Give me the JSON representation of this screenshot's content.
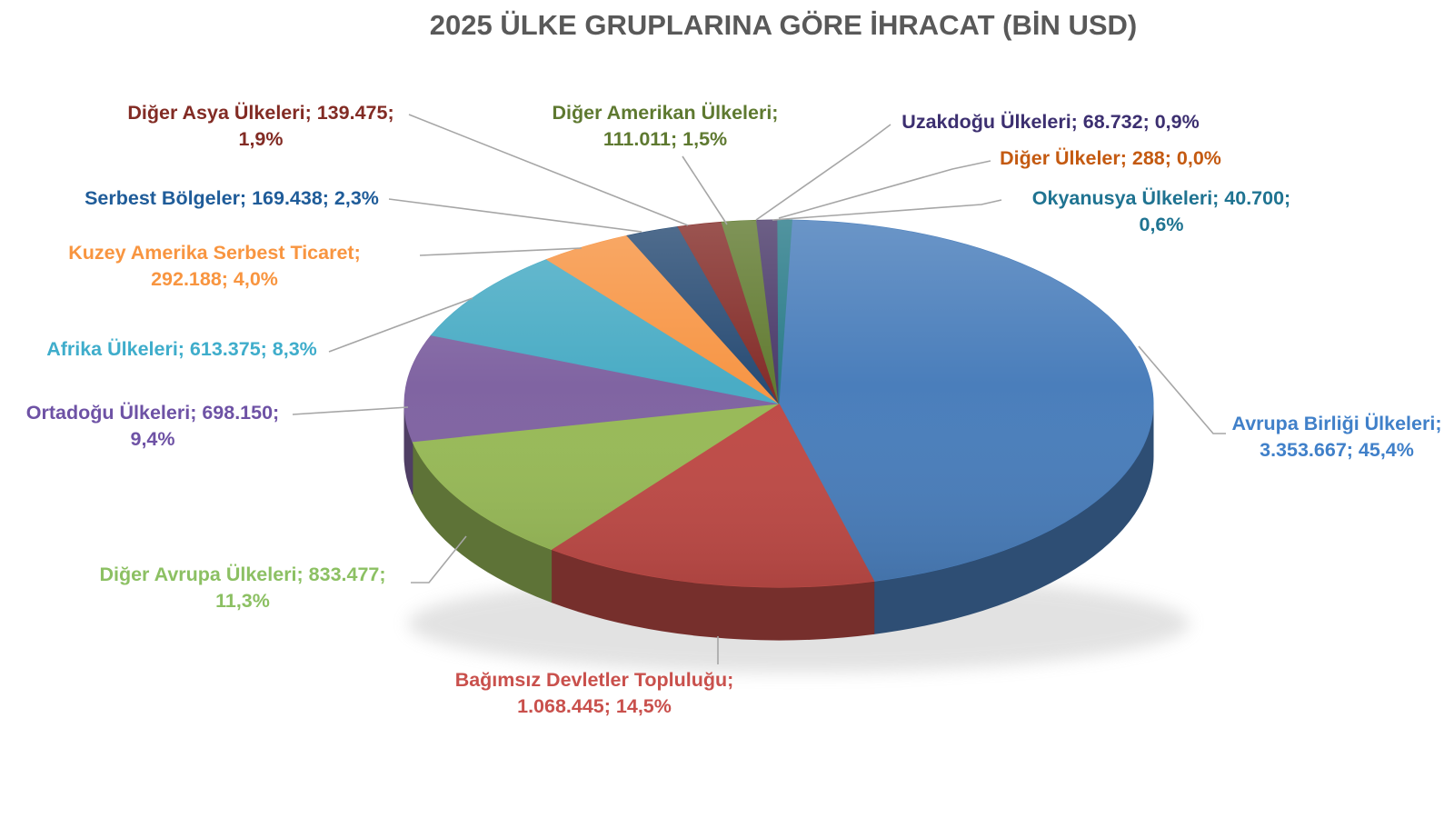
{
  "chart_data": {
    "type": "pie",
    "style": "3d",
    "title": "2025 ÜLKE GRUPLARINA GÖRE İHRACAT (BİN USD)",
    "title_color": "#595959",
    "unit": "BİN USD",
    "legend_position": "none",
    "background": "#FFFFFF",
    "leader_line_color": "#A6A6A6",
    "label_format": "name; value; percent",
    "slices": [
      {
        "name": "Avrupa Birliği Ülkeleri",
        "value": 3353667,
        "value_label": "3.353.667",
        "pct": 45.4,
        "pct_label": "45,4%",
        "color": "#4A7EBB",
        "label_color": "#4080C9",
        "label_lines": [
          "Avrupa Birliği Ülkeleri;",
          "3.353.667; 45,4%"
        ]
      },
      {
        "name": "Bağımsız Devletler Topluluğu",
        "value": 1068445,
        "value_label": "1.068.445",
        "pct": 14.5,
        "pct_label": "14,5%",
        "color": "#BF4B47",
        "label_color": "#C9504C",
        "label_lines": [
          "Bağımsız Devletler Topluluğu;",
          "1.068.445; 14,5%"
        ]
      },
      {
        "name": "Diğer Avrupa Ülkeleri",
        "value": 833477,
        "value_label": "833.477",
        "pct": 11.3,
        "pct_label": "11,3%",
        "color": "#98BA58",
        "label_color": "#8CC063",
        "label_lines": [
          "Diğer Avrupa Ülkeleri; 833.477;",
          "11,3%"
        ]
      },
      {
        "name": "Ortadoğu Ülkeleri",
        "value": 698150,
        "value_label": "698.150",
        "pct": 9.4,
        "pct_label": "9,4%",
        "color": "#8064A2",
        "label_color": "#6E52A5",
        "label_lines": [
          "Ortadoğu Ülkeleri; 698.150;",
          "9,4%"
        ]
      },
      {
        "name": "Afrika Ülkeleri",
        "value": 613375,
        "value_label": "613.375",
        "pct": 8.3,
        "pct_label": "8,3%",
        "color": "#4AACC5",
        "label_color": "#3FADCB",
        "label_lines": [
          "Afrika Ülkeleri; 613.375; 8,3%"
        ]
      },
      {
        "name": "Kuzey Amerika Serbest Ticaret",
        "value": 292188,
        "value_label": "292.188",
        "pct": 4.0,
        "pct_label": "4,0%",
        "color": "#F79646",
        "label_color": "#F89540",
        "label_lines": [
          "Kuzey Amerika Serbest Ticaret;",
          "292.188; 4,0%"
        ]
      },
      {
        "name": "Serbest Bölgeler",
        "value": 169438,
        "value_label": "169.438",
        "pct": 2.3,
        "pct_label": "2,3%",
        "color": "#2A4D75",
        "label_color": "#1F5C99",
        "label_lines": [
          "Serbest Bölgeler; 169.438; 2,3%"
        ]
      },
      {
        "name": "Diğer Asya Ülkeleri",
        "value": 139475,
        "value_label": "139.475",
        "pct": 1.9,
        "pct_label": "1,9%",
        "color": "#852F2B",
        "label_color": "#822B24",
        "label_lines": [
          "Diğer Asya Ülkeleri; 139.475;",
          "1,9%"
        ]
      },
      {
        "name": "Diğer Amerikan Ülkeleri",
        "value": 111011,
        "value_label": "111.011",
        "pct": 1.5,
        "pct_label": "1,5%",
        "color": "#637C33",
        "label_color": "#5E7930",
        "label_lines": [
          "Diğer Amerikan Ülkeleri;",
          "111.011; 1,5%"
        ]
      },
      {
        "name": "Uzakdoğu Ülkeleri",
        "value": 68732,
        "value_label": "68.732",
        "pct": 0.9,
        "pct_label": "0,9%",
        "color": "#4C3C6B",
        "label_color": "#3C2F70",
        "label_lines": [
          "Uzakdoğu Ülkeleri; 68.732; 0,9%"
        ]
      },
      {
        "name": "Okyanusya Ülkeleri",
        "value": 40700,
        "value_label": "40.700",
        "pct": 0.6,
        "pct_label": "0,6%",
        "color": "#2B7C8A",
        "label_color": "#1F7391",
        "label_lines": [
          "Okyanusya Ülkeleri; 40.700;",
          "0,6%"
        ]
      },
      {
        "name": "Diğer Ülkeler",
        "value": 288,
        "value_label": "288",
        "pct": 0.0,
        "pct_label": "0,0%",
        "color": "#B65708",
        "label_color": "#C45A11",
        "label_lines": [
          "Diğer Ülkeler; 288; 0,0%"
        ]
      }
    ]
  }
}
